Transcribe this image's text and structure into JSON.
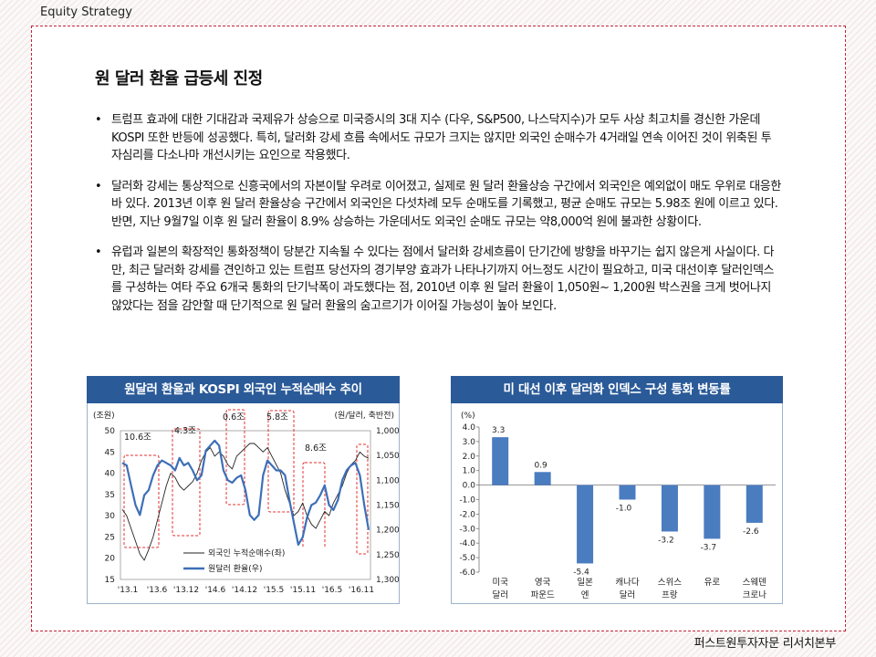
{
  "header": {
    "label": "Equity Strategy"
  },
  "section": {
    "title": "원 달러 환율 급등세 진정"
  },
  "bullets": [
    {
      "text": "트럼프 효과에 대한 기대감과 국제유가 상승으로 미국증시의 3대 지수 (다우, S&P500, 나스닥지수)가 모두 사상 최고치를 경신한 가운데 KOSPI 또한 반등에 성공했다. 특히, 달러화 강세 흐름 속에서도 규모가 크지는 않지만 외국인 순매수가 4거래일 연속 이어진 것이 위축된 투자심리를 다소나마 개선시키는 요인으로 작용했다."
    },
    {
      "text": "달러화 강세는 통상적으로 신흥국에서의 자본이탈 우려로 이어졌고, 실제로 원 달러 환율상승 구간에서 외국인은 예외없이 매도 우위로 대응한 바 있다. 2013년 이후 원 달러 환율상승 구간에서 외국인은 다섯차례 모두 순매도를 기록했고, 평균 순매도 규모는 5.98조 원에 이르고 있다. 반면, 지난 9월7일 이후 원 달러 환율이 8.9% 상승하는 가운데서도 외국인 순매도 규모는 약8,000억 원에 불과한 상황이다."
    },
    {
      "text": "유럽과 일본의 확장적인 통화정책이 당분간 지속될 수 있다는 점에서 달러화 강세흐름이 단기간에 방향을 바꾸기는 쉽지 않은게 사실이다. 다만, 최근 달러화 강세를 견인하고 있는 트럼프 당선자의 경기부양 효과가 나타나기까지 어느정도 시간이 필요하고, 미국 대선이후 달러인덱스를 구성하는 여타 주요 6개국 통화의 단기낙폭이 과도했다는 점, 2010년 이후 원 달러 환율이 1,050원~ 1,200원 박스권을 크게 벗어나지 않았다는 점을 감안할 때 단기적으로 원 달러 환율의 숨고르기가 이어질 가능성이 높아 보인다."
    }
  ],
  "footer": {
    "label": "퍼스트원투자자문 리서치본부"
  },
  "chart_data": [
    {
      "type": "line",
      "title": "원달러 환율과 KOSPI 외국인 누적순매수 추이",
      "left_axis_label": "(조원)",
      "right_axis_label": "(원/달러, 축반전)",
      "ylim_left": [
        15,
        50
      ],
      "ylim_right": [
        1300,
        1000
      ],
      "right_axis_inverted": true,
      "yticks_left": [
        "50",
        "45",
        "40",
        "35",
        "30",
        "25",
        "20",
        "15"
      ],
      "yticks_right": [
        "1,000",
        "1,050",
        "1,100",
        "1,150",
        "1,200",
        "1,250",
        "1,300"
      ],
      "xticks": [
        "'13.1",
        "'13.6",
        "'13.12",
        "'14.6",
        "'14.12",
        "'15.5",
        "'15.11",
        "'16.5",
        "'16.11"
      ],
      "legend": [
        "외국인 누적순매수(좌)",
        "원달러 환율(우)"
      ],
      "annotations": [
        "10.6조",
        "4.3조",
        "0.6조",
        "5.8조",
        "8.6조"
      ],
      "series": [
        {
          "name": "외국인 누적순매수(좌)",
          "axis": "left",
          "color": "#222222",
          "values": [
            31.5,
            30,
            27,
            24,
            21,
            19.5,
            22,
            25,
            29,
            33,
            37,
            40,
            39,
            37,
            36,
            37,
            38,
            40,
            43,
            45,
            46,
            44,
            45,
            44,
            42,
            41,
            44,
            45,
            46,
            47,
            47,
            46,
            45,
            46,
            44,
            42,
            40,
            36,
            33,
            30,
            31,
            33,
            30,
            28,
            27,
            29,
            31,
            30,
            33,
            35,
            37,
            40,
            42,
            43,
            45,
            44,
            43.5
          ]
        },
        {
          "name": "원달러 환율(우)",
          "axis": "right",
          "color": "#3d6fb8",
          "values": [
            1065,
            1070,
            1110,
            1150,
            1170,
            1130,
            1120,
            1090,
            1070,
            1060,
            1065,
            1070,
            1080,
            1055,
            1070,
            1065,
            1080,
            1100,
            1090,
            1040,
            1030,
            1020,
            1030,
            1080,
            1100,
            1105,
            1095,
            1090,
            1120,
            1170,
            1180,
            1170,
            1090,
            1060,
            1070,
            1080,
            1080,
            1090,
            1140,
            1185,
            1230,
            1215,
            1175,
            1150,
            1145,
            1130,
            1110,
            1150,
            1160,
            1140,
            1100,
            1080,
            1070,
            1065,
            1090,
            1150,
            1200
          ]
        }
      ]
    },
    {
      "type": "bar",
      "title": "미 대선 이후 달러화 인덱스 구성 통화 변동률",
      "unit": "(%)",
      "ylim": [
        -6,
        4
      ],
      "yticks": [
        "4.0",
        "3.0",
        "2.0",
        "1.0",
        "0.0",
        "-1.0",
        "-2.0",
        "-3.0",
        "-4.0",
        "-5.0",
        "-6.0"
      ],
      "categories": [
        "미국 달러",
        "영국 파운드",
        "일본 엔",
        "캐나다 달러",
        "스위스 프랑",
        "유로",
        "스웨덴 크로나"
      ],
      "category_lines": [
        [
          "미국",
          "달러"
        ],
        [
          "영국",
          "파운드"
        ],
        [
          "일본",
          "엔"
        ],
        [
          "캐나다",
          "달러"
        ],
        [
          "스위스",
          "프랑"
        ],
        [
          "유로",
          ""
        ],
        [
          "스웨덴",
          "크로나"
        ]
      ],
      "values": [
        3.3,
        0.9,
        -5.4,
        -1.0,
        -3.2,
        -3.7,
        -2.6
      ],
      "data_labels": [
        "3.3",
        "0.9",
        "-5.4",
        "-1.0",
        "-3.2",
        "-3.7",
        "-2.6"
      ],
      "color": "#4a7cc0"
    }
  ]
}
